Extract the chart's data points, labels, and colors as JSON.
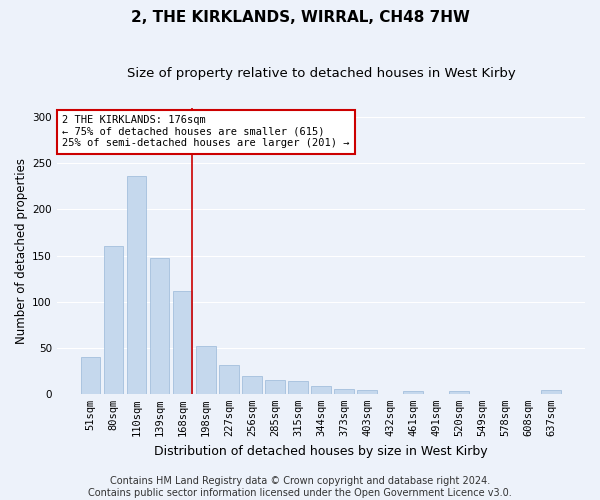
{
  "title": "2, THE KIRKLANDS, WIRRAL, CH48 7HW",
  "subtitle": "Size of property relative to detached houses in West Kirby",
  "xlabel": "Distribution of detached houses by size in West Kirby",
  "ylabel": "Number of detached properties",
  "footer_line1": "Contains HM Land Registry data © Crown copyright and database right 2024.",
  "footer_line2": "Contains public sector information licensed under the Open Government Licence v3.0.",
  "categories": [
    "51sqm",
    "80sqm",
    "110sqm",
    "139sqm",
    "168sqm",
    "198sqm",
    "227sqm",
    "256sqm",
    "285sqm",
    "315sqm",
    "344sqm",
    "373sqm",
    "403sqm",
    "432sqm",
    "461sqm",
    "491sqm",
    "520sqm",
    "549sqm",
    "578sqm",
    "608sqm",
    "637sqm"
  ],
  "values": [
    40,
    160,
    236,
    147,
    111,
    52,
    31,
    19,
    15,
    14,
    8,
    5,
    4,
    0,
    3,
    0,
    3,
    0,
    0,
    0,
    4
  ],
  "bar_color": "#c5d8ed",
  "bar_edge_color": "#9ab8d8",
  "vline_x_index": 4,
  "annotation_text_line1": "2 THE KIRKLANDS: 176sqm",
  "annotation_text_line2": "← 75% of detached houses are smaller (615)",
  "annotation_text_line3": "25% of semi-detached houses are larger (201) →",
  "annotation_box_color": "#ffffff",
  "annotation_box_edge": "#cc0000",
  "vline_color": "#cc0000",
  "ylim": [
    0,
    310
  ],
  "yticks": [
    0,
    50,
    100,
    150,
    200,
    250,
    300
  ],
  "background_color": "#edf2fa",
  "grid_color": "#ffffff",
  "title_fontsize": 11,
  "subtitle_fontsize": 9.5,
  "ylabel_fontsize": 8.5,
  "xlabel_fontsize": 9,
  "tick_fontsize": 7.5,
  "footer_fontsize": 7,
  "annotation_fontsize": 7.5
}
